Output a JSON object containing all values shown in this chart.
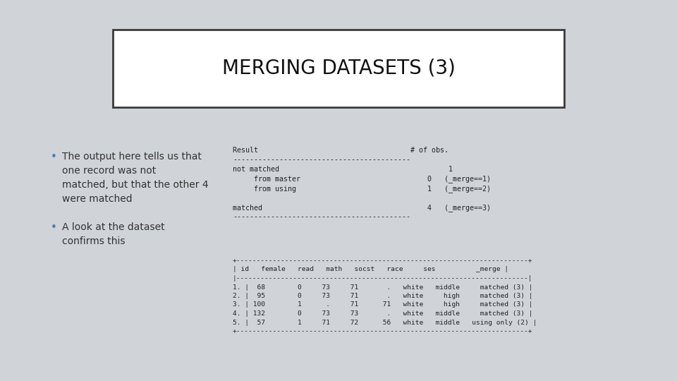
{
  "bg_color": "#d0d3d8",
  "title": "MERGING DATASETS (3)",
  "title_box_bg": "#ffffff",
  "title_box_border": "#3a3a3a",
  "bullet_color": "#4a7ab5",
  "bullet_text_color": "#333333",
  "bullets": [
    "The output here tells us that\none record was not\nmatched, but that the other 4\nwere matched",
    "A look at the dataset\nconfirms this"
  ],
  "merge_lines": [
    "Result                                    # of obs.",
    "------------------------------------------",
    "not matched                                        1",
    "     from master                              0   (_merge==1)",
    "     from using                               1   (_merge==2)",
    "",
    "matched                                       4   (_merge==3)",
    "------------------------------------------"
  ],
  "data_table_lines": [
    "+------------------------------------------------------------------------+",
    "| id   female   read   math   socst   race     ses          _merge |",
    "|------------------------------------------------------------------------|",
    "1. |  68        0     73     71       .   white   middle     matched (3) |",
    "2. |  95        0     73     71       .   white     high     matched (3) |",
    "3. | 100        1      .     71      71   white     high     matched (3) |",
    "4. | 132        0     73     73       .   white   middle     matched (3) |",
    "5. |  57        1     71     72      56   white   middle   using only (2) |",
    "+------------------------------------------------------------------------+"
  ]
}
